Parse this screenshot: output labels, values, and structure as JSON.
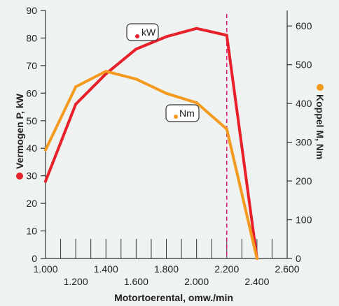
{
  "chart_data": {
    "type": "line",
    "x_axis": {
      "label": "Motortoerental, omw./min",
      "min": 1000,
      "max": 2600,
      "tick_labels": [
        "1.000",
        "1.200",
        "1.400",
        "1.600",
        "1.800",
        "2.000",
        "2.200",
        "2.400",
        "2.600"
      ],
      "minor_tick_step": 100
    },
    "y_left": {
      "label": "Vermogen P, kW",
      "min": 0,
      "max": 90,
      "ticks": [
        0,
        10,
        20,
        30,
        40,
        50,
        60,
        70,
        80,
        90
      ]
    },
    "y_right": {
      "label": "Koppel M, Nm",
      "min": 0,
      "max": 640,
      "ticks": [
        0,
        100,
        200,
        300,
        400,
        500,
        600
      ]
    },
    "marker_line_x": 2200,
    "series": [
      {
        "name": "kW",
        "axis": "left",
        "color": "#e8202a",
        "x": [
          1000,
          1200,
          1400,
          1600,
          1800,
          2000,
          2200,
          2400
        ],
        "y": [
          28,
          56,
          67,
          76,
          80.5,
          83.5,
          81,
          0
        ]
      },
      {
        "name": "Nm",
        "axis": "right",
        "color": "#f39a1f",
        "x": [
          1000,
          1200,
          1400,
          1600,
          1800,
          2000,
          2200,
          2400
        ],
        "y": [
          280,
          443,
          483,
          463,
          426,
          402,
          334,
          0
        ]
      }
    ],
    "legend_left_color": "#e8202a",
    "legend_right_color": "#f39a1f"
  }
}
